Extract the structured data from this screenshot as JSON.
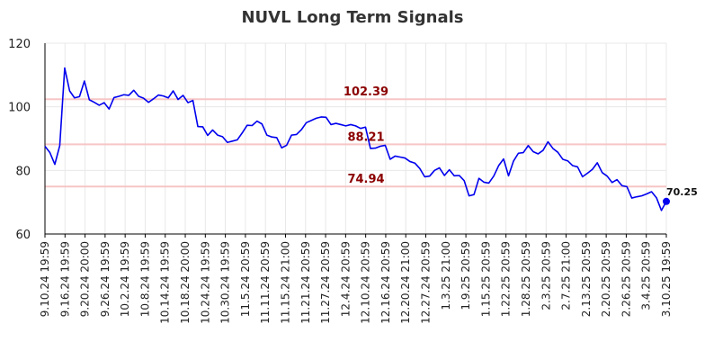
{
  "chart_data": {
    "type": "line",
    "title": "NUVL Long Term Signals",
    "ylim": [
      60,
      120
    ],
    "yticks": [
      60,
      80,
      100,
      120
    ],
    "grid": true,
    "x_tick_labels": [
      "9.10.24 19:59",
      "9.16.24 19:59",
      "9.20.24 20:00",
      "9.26.24 19:59",
      "10.2.24 19:59",
      "10.8.24 19:59",
      "10.14.24 19:59",
      "10.18.24 20:00",
      "10.24.24 19:59",
      "10.30.24 19:59",
      "11.5.24 20:59",
      "11.11.24 20:59",
      "11.15.24 21:00",
      "11.21.24 20:59",
      "11.27.24 20:59",
      "12.4.24 20:59",
      "12.10.24 20:59",
      "12.16.24 20:59",
      "12.20.24 21:00",
      "12.27.24 20:59",
      "1.3.25 21:00",
      "1.9.25 20:59",
      "1.15.25 20:59",
      "1.22.25 20:59",
      "1.28.25 20:59",
      "2.3.25 20:59",
      "2.7.25 21:00",
      "2.13.25 20:59",
      "2.20.25 20:59",
      "2.26.25 20:59",
      "3.4.25 20:59",
      "3.10.25 19:59"
    ],
    "series": [
      {
        "values": [
          87.6,
          85.6,
          81.9,
          87.8,
          112.2,
          105.0,
          102.8,
          103.2,
          108.1,
          102.2,
          101.4,
          100.5,
          101.3,
          99.3,
          102.9,
          103.3,
          103.8,
          103.6,
          105.2,
          103.3,
          102.7,
          101.4,
          102.5,
          103.7,
          103.4,
          102.8,
          105.0,
          102.3,
          103.6,
          101.3,
          102.0,
          93.8,
          93.7,
          91.0,
          92.7,
          91.1,
          90.6,
          88.8,
          89.2,
          89.6,
          91.8,
          94.2,
          94.1,
          95.5,
          94.6,
          91.1,
          90.5,
          90.3,
          87.1,
          87.9,
          91.1,
          91.3,
          92.8,
          95.0,
          95.7,
          96.4,
          96.8,
          96.7,
          94.4,
          94.8,
          94.4,
          94.0,
          94.4,
          94.0,
          93.2,
          93.6,
          86.9,
          87.0,
          87.6,
          87.9,
          83.5,
          84.5,
          84.2,
          83.9,
          82.8,
          82.3,
          80.6,
          78.0,
          78.2,
          80.0,
          80.8,
          78.4,
          80.2,
          78.3,
          78.4,
          76.8,
          72.0,
          72.4,
          77.5,
          76.3,
          76.0,
          78.2,
          81.5,
          83.6,
          78.3,
          82.9,
          85.4,
          85.6,
          87.8,
          85.9,
          85.2,
          86.3,
          89.0,
          86.9,
          85.7,
          83.5,
          83.0,
          81.5,
          81.1,
          78.0,
          79.1,
          80.3,
          82.4,
          79.3,
          78.2,
          76.2,
          77.1,
          75.2,
          74.9,
          71.3,
          71.7,
          72.0,
          72.6,
          73.3,
          71.4,
          67.4,
          70.25
        ],
        "color": "#0000ee"
      }
    ],
    "signals": [
      {
        "value": 102.39,
        "label": "102.39"
      },
      {
        "value": 88.21,
        "label": "88.21"
      },
      {
        "value": 74.94,
        "label": "74.94"
      }
    ],
    "last_value_label": "70.25",
    "colors": {
      "line": "#0000ee",
      "signal_line": "#f7c5c5",
      "signal_text": "#8b0000",
      "grid": "#e8e8e8",
      "axis": "#000000"
    }
  }
}
